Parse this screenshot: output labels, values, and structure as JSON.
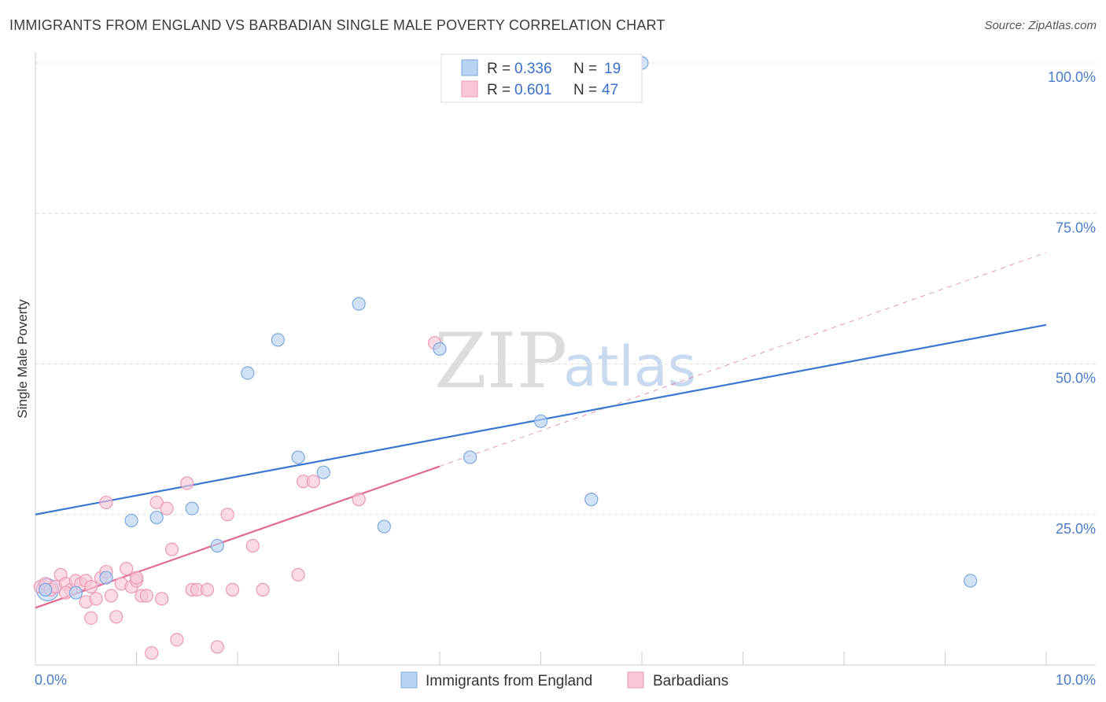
{
  "header": {
    "title": "IMMIGRANTS FROM ENGLAND VS BARBADIAN SINGLE MALE POVERTY CORRELATION CHART",
    "source": "Source: ZipAtlas.com"
  },
  "watermark": {
    "zip": "ZIP",
    "atlas": "atlas"
  },
  "colors": {
    "blue_fill": "#b9d3f3",
    "blue_stroke": "#7ea7de",
    "blue_line": "#3a78d0",
    "pink_fill": "#f8c6d6",
    "pink_stroke": "#e99ab4",
    "pink_line": "#e06b92",
    "grid": "#dddddd",
    "tick_text": "#4a7cc9"
  },
  "legend": {
    "rows": [
      {
        "r_label": "R =",
        "r_value": "0.336",
        "n_label": "N =",
        "n_value": "19"
      },
      {
        "r_label": "R =",
        "r_value": "0.601",
        "n_label": "N =",
        "n_value": "47"
      }
    ]
  },
  "chart_data": {
    "type": "scatter",
    "title": "IMMIGRANTS FROM ENGLAND VS BARBADIAN SINGLE MALE POVERTY CORRELATION CHART",
    "xlabel": "",
    "ylabel": "Single Male Poverty",
    "xlim": [
      0,
      10
    ],
    "ylim": [
      0,
      100
    ],
    "x_tick_labels": [
      "0.0%",
      "10.0%"
    ],
    "y_tick_labels": [
      "100.0%",
      "75.0%",
      "50.0%",
      "25.0%"
    ],
    "y_ticks": [
      100,
      75,
      50,
      25
    ],
    "series": [
      {
        "name": "Immigrants from England",
        "r": 0.336,
        "n": 19,
        "points": [
          [
            0.1,
            12.5
          ],
          [
            0.4,
            12.0
          ],
          [
            0.7,
            14.5
          ],
          [
            0.95,
            24.0
          ],
          [
            1.2,
            24.5
          ],
          [
            1.55,
            26.0
          ],
          [
            1.8,
            19.8
          ],
          [
            2.1,
            48.5
          ],
          [
            2.4,
            54.0
          ],
          [
            2.6,
            34.5
          ],
          [
            2.85,
            32.0
          ],
          [
            3.2,
            60.0
          ],
          [
            3.45,
            23.0
          ],
          [
            4.0,
            52.5
          ],
          [
            4.3,
            34.5
          ],
          [
            5.0,
            40.5
          ],
          [
            5.5,
            27.5
          ],
          [
            6.0,
            100.0
          ],
          [
            9.25,
            14.0
          ]
        ],
        "trend": {
          "x": [
            0,
            10
          ],
          "y": [
            25.0,
            56.5
          ]
        }
      },
      {
        "name": "Barbadians",
        "r": 0.601,
        "n": 47,
        "points": [
          [
            0.05,
            13.0
          ],
          [
            0.1,
            13.5
          ],
          [
            0.15,
            12.5
          ],
          [
            0.2,
            13.0
          ],
          [
            0.25,
            15.0
          ],
          [
            0.3,
            13.5
          ],
          [
            0.35,
            12.5
          ],
          [
            0.4,
            14.0
          ],
          [
            0.45,
            13.5
          ],
          [
            0.5,
            14.0
          ],
          [
            0.55,
            13.0
          ],
          [
            0.5,
            10.5
          ],
          [
            0.55,
            7.8
          ],
          [
            0.6,
            11.0
          ],
          [
            0.65,
            14.5
          ],
          [
            0.7,
            15.5
          ],
          [
            0.75,
            11.5
          ],
          [
            0.8,
            8.0
          ],
          [
            0.85,
            13.5
          ],
          [
            0.9,
            16.0
          ],
          [
            0.95,
            13.0
          ],
          [
            1.0,
            14.0
          ],
          [
            1.05,
            11.5
          ],
          [
            1.1,
            11.5
          ],
          [
            1.15,
            2.0
          ],
          [
            1.2,
            27.0
          ],
          [
            1.25,
            11.0
          ],
          [
            1.3,
            26.0
          ],
          [
            1.35,
            19.2
          ],
          [
            1.4,
            4.2
          ],
          [
            1.5,
            30.2
          ],
          [
            1.55,
            12.5
          ],
          [
            1.6,
            12.5
          ],
          [
            1.7,
            12.5
          ],
          [
            1.8,
            3.0
          ],
          [
            1.9,
            25.0
          ],
          [
            1.95,
            12.5
          ],
          [
            2.15,
            19.8
          ],
          [
            2.25,
            12.5
          ],
          [
            2.6,
            15.0
          ],
          [
            2.65,
            30.5
          ],
          [
            2.75,
            30.5
          ],
          [
            3.2,
            27.5
          ],
          [
            3.95,
            53.5
          ],
          [
            0.7,
            27.0
          ],
          [
            0.3,
            12.0
          ],
          [
            1.0,
            14.5
          ]
        ],
        "trend": {
          "x": [
            0,
            4.0
          ],
          "y": [
            9.5,
            33.0
          ]
        },
        "trend_dashed": {
          "x": [
            4.0,
            10
          ],
          "y": [
            33.0,
            68.5
          ]
        }
      }
    ],
    "bottom_legend": [
      "Immigrants from England",
      "Barbadians"
    ]
  }
}
